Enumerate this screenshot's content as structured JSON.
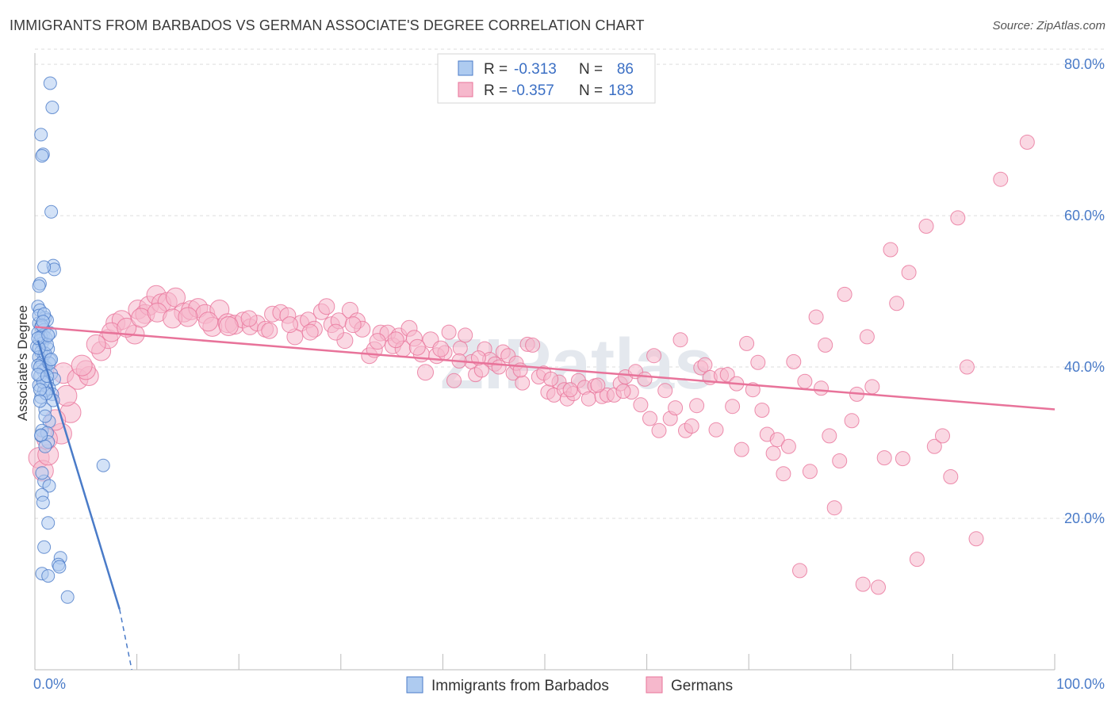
{
  "title": "IMMIGRANTS FROM BARBADOS VS GERMAN ASSOCIATE'S DEGREE CORRELATION CHART",
  "source": "Source: ZipAtlas.com",
  "watermark": "ZIPatlas",
  "colors": {
    "blue": "#4a7bc8",
    "blue_fill": "#aecbf0",
    "pink": "#e8739a",
    "pink_fill": "#f6b8cc",
    "grid": "#dddddd"
  },
  "legend": {
    "rows": [
      {
        "r_label": "R =",
        "r_value": "-0.313",
        "n_label": "N =",
        "n_value": "86"
      },
      {
        "r_label": "R =",
        "r_value": "-0.357",
        "n_label": "N =",
        "n_value": "183"
      }
    ]
  },
  "bottom_legend": [
    "Immigrants from Barbados",
    "Germans"
  ],
  "chart_data": {
    "type": "scatter",
    "title": "IMMIGRANTS FROM BARBADOS VS GERMAN ASSOCIATE'S DEGREE CORRELATION CHART",
    "xlabel": "",
    "ylabel": "Associate's Degree",
    "xlim": [
      0,
      100
    ],
    "ylim": [
      0,
      82
    ],
    "x_tick_labels": [
      "0.0%",
      "100.0%"
    ],
    "y_ticks": [
      20,
      40,
      60,
      80
    ],
    "y_tick_labels": [
      "20.0%",
      "40.0%",
      "60.0%",
      "80.0%"
    ],
    "grid": true,
    "legend_position": "top-center",
    "series": [
      {
        "name": "Immigrants from Barbados",
        "r": -0.313,
        "n": 86,
        "trend": {
          "x0": 0.3,
          "y0": 43.5,
          "x1": 8.3,
          "y1": 8.0,
          "dash_x1": 9.5,
          "dash_y1": 0
        },
        "points": [
          [
            1.5,
            77.5
          ],
          [
            1.7,
            74.3
          ],
          [
            0.6,
            70.7
          ],
          [
            0.8,
            68.1
          ],
          [
            0.7,
            67.9
          ],
          [
            1.6,
            60.5
          ],
          [
            1.8,
            53.4
          ],
          [
            1.9,
            52.9
          ],
          [
            0.9,
            53.2
          ],
          [
            0.5,
            51.0
          ],
          [
            0.4,
            50.7
          ],
          [
            0.3,
            48.0
          ],
          [
            0.5,
            47.5
          ],
          [
            1.0,
            46.5
          ],
          [
            1.2,
            46.2
          ],
          [
            0.4,
            45.8
          ],
          [
            0.6,
            45.3
          ],
          [
            0.9,
            44.9
          ],
          [
            0.3,
            44.5
          ],
          [
            0.8,
            44.2
          ],
          [
            1.1,
            43.8
          ],
          [
            0.5,
            43.5
          ],
          [
            0.7,
            43.1
          ],
          [
            0.2,
            42.7
          ],
          [
            1.3,
            42.4
          ],
          [
            0.6,
            42.0
          ],
          [
            0.9,
            41.6
          ],
          [
            0.4,
            41.3
          ],
          [
            1.5,
            40.9
          ],
          [
            0.7,
            40.6
          ],
          [
            0.3,
            40.2
          ],
          [
            1.1,
            39.9
          ],
          [
            0.8,
            39.5
          ],
          [
            1.6,
            39.1
          ],
          [
            0.5,
            38.8
          ],
          [
            1.9,
            38.4
          ],
          [
            1.2,
            38.0
          ],
          [
            0.4,
            37.6
          ],
          [
            1.4,
            37.2
          ],
          [
            0.9,
            36.9
          ],
          [
            1.7,
            36.4
          ],
          [
            0.6,
            36.0
          ],
          [
            1.8,
            35.6
          ],
          [
            1.0,
            34.4
          ],
          [
            1.4,
            32.8
          ],
          [
            0.7,
            31.6
          ],
          [
            1.2,
            31.3
          ],
          [
            0.6,
            30.9
          ],
          [
            1.3,
            30.1
          ],
          [
            0.9,
            24.9
          ],
          [
            1.4,
            24.3
          ],
          [
            0.7,
            23.1
          ],
          [
            0.8,
            22.1
          ],
          [
            1.3,
            19.4
          ],
          [
            0.9,
            16.2
          ],
          [
            2.5,
            14.8
          ],
          [
            2.3,
            13.9
          ],
          [
            2.4,
            13.6
          ],
          [
            0.7,
            12.7
          ],
          [
            1.3,
            12.4
          ],
          [
            3.2,
            9.6
          ],
          [
            6.7,
            27.0
          ],
          [
            0.4,
            46.8
          ],
          [
            0.6,
            44.0
          ],
          [
            1.0,
            41.8
          ],
          [
            0.5,
            40.0
          ],
          [
            1.2,
            43.0
          ],
          [
            0.8,
            38.0
          ],
          [
            0.3,
            39.0
          ],
          [
            1.5,
            44.5
          ],
          [
            0.9,
            47.0
          ],
          [
            0.4,
            42.5
          ],
          [
            1.1,
            36.5
          ],
          [
            0.7,
            45.5
          ],
          [
            1.4,
            40.5
          ],
          [
            0.5,
            37.0
          ],
          [
            1.0,
            33.5
          ],
          [
            0.6,
            31.0
          ],
          [
            1.6,
            41.0
          ],
          [
            0.3,
            43.8
          ],
          [
            0.8,
            46.0
          ],
          [
            1.2,
            38.8
          ],
          [
            0.5,
            35.5
          ],
          [
            1.0,
            29.5
          ],
          [
            0.7,
            26.0
          ],
          [
            1.3,
            44.2
          ]
        ]
      },
      {
        "name": "Germans",
        "r": -0.357,
        "n": 183,
        "trend": {
          "x0": 0,
          "y0": 45.3,
          "x1": 100,
          "y1": 34.4
        },
        "points": [
          [
            0.4,
            28.0
          ],
          [
            0.8,
            26.3
          ],
          [
            1.3,
            28.4
          ],
          [
            2.6,
            31.2
          ],
          [
            3.5,
            34.0
          ],
          [
            2.8,
            39.2
          ],
          [
            4.2,
            38.4
          ],
          [
            5.3,
            38.8
          ],
          [
            5.0,
            39.6
          ],
          [
            6.5,
            42.1
          ],
          [
            7.2,
            43.7
          ],
          [
            7.9,
            45.8
          ],
          [
            8.5,
            46.2
          ],
          [
            9.8,
            44.3
          ],
          [
            10.1,
            47.6
          ],
          [
            10.8,
            47.0
          ],
          [
            11.2,
            48.1
          ],
          [
            11.9,
            49.5
          ],
          [
            12.4,
            48.4
          ],
          [
            13.0,
            48.6
          ],
          [
            13.8,
            49.2
          ],
          [
            14.6,
            47.2
          ],
          [
            15.3,
            47.5
          ],
          [
            16.0,
            47.8
          ],
          [
            16.7,
            47.0
          ],
          [
            17.4,
            45.3
          ],
          [
            18.1,
            47.6
          ],
          [
            18.9,
            45.8
          ],
          [
            19.6,
            45.6
          ],
          [
            20.4,
            46.2
          ],
          [
            21.1,
            45.3
          ],
          [
            21.8,
            45.8
          ],
          [
            22.6,
            45.0
          ],
          [
            23.3,
            47.0
          ],
          [
            24.1,
            47.2
          ],
          [
            24.8,
            46.8
          ],
          [
            25.5,
            44.0
          ],
          [
            26.1,
            45.8
          ],
          [
            26.8,
            46.2
          ],
          [
            27.4,
            45.0
          ],
          [
            28.1,
            47.3
          ],
          [
            28.6,
            48.0
          ],
          [
            29.1,
            45.6
          ],
          [
            29.8,
            46.1
          ],
          [
            30.4,
            43.5
          ],
          [
            30.9,
            47.5
          ],
          [
            31.6,
            46.1
          ],
          [
            32.1,
            45.0
          ],
          [
            32.8,
            41.5
          ],
          [
            33.3,
            42.3
          ],
          [
            33.9,
            44.5
          ],
          [
            34.6,
            44.5
          ],
          [
            35.1,
            42.8
          ],
          [
            35.7,
            44.1
          ],
          [
            36.1,
            42.4
          ],
          [
            36.7,
            45.1
          ],
          [
            37.2,
            43.8
          ],
          [
            37.9,
            41.7
          ],
          [
            38.3,
            39.3
          ],
          [
            38.8,
            43.6
          ],
          [
            39.4,
            41.5
          ],
          [
            40.2,
            41.9
          ],
          [
            40.6,
            44.6
          ],
          [
            41.1,
            38.2
          ],
          [
            41.7,
            42.5
          ],
          [
            42.2,
            44.2
          ],
          [
            42.8,
            40.7
          ],
          [
            43.2,
            39.0
          ],
          [
            43.8,
            39.6
          ],
          [
            44.1,
            42.4
          ],
          [
            44.6,
            41.0
          ],
          [
            45.1,
            40.4
          ],
          [
            45.9,
            42.0
          ],
          [
            46.4,
            41.5
          ],
          [
            46.9,
            39.2
          ],
          [
            47.2,
            40.5
          ],
          [
            47.8,
            37.9
          ],
          [
            48.3,
            43.0
          ],
          [
            48.8,
            42.9
          ],
          [
            49.4,
            38.7
          ],
          [
            49.9,
            39.2
          ],
          [
            50.3,
            36.7
          ],
          [
            50.9,
            36.3
          ],
          [
            51.4,
            38.0
          ],
          [
            51.9,
            37.0
          ],
          [
            52.2,
            35.8
          ],
          [
            52.8,
            36.5
          ],
          [
            53.3,
            38.2
          ],
          [
            53.9,
            37.3
          ],
          [
            54.3,
            35.8
          ],
          [
            54.9,
            37.5
          ],
          [
            55.6,
            36.1
          ],
          [
            56.1,
            36.3
          ],
          [
            56.8,
            36.3
          ],
          [
            57.4,
            37.8
          ],
          [
            57.9,
            38.7
          ],
          [
            58.5,
            36.7
          ],
          [
            58.9,
            39.4
          ],
          [
            59.4,
            35.0
          ],
          [
            59.8,
            38.4
          ],
          [
            60.3,
            33.2
          ],
          [
            60.7,
            41.5
          ],
          [
            61.2,
            31.6
          ],
          [
            61.8,
            36.9
          ],
          [
            62.3,
            33.2
          ],
          [
            62.8,
            34.6
          ],
          [
            63.3,
            43.6
          ],
          [
            63.8,
            31.6
          ],
          [
            64.4,
            32.2
          ],
          [
            64.9,
            34.9
          ],
          [
            65.3,
            39.9
          ],
          [
            65.7,
            40.3
          ],
          [
            66.2,
            38.6
          ],
          [
            66.8,
            31.7
          ],
          [
            67.3,
            38.9
          ],
          [
            67.9,
            39.0
          ],
          [
            68.4,
            34.8
          ],
          [
            68.8,
            37.8
          ],
          [
            69.3,
            29.1
          ],
          [
            69.8,
            43.1
          ],
          [
            70.4,
            37.0
          ],
          [
            70.9,
            40.6
          ],
          [
            71.3,
            34.3
          ],
          [
            71.8,
            31.1
          ],
          [
            72.4,
            28.6
          ],
          [
            72.8,
            30.4
          ],
          [
            73.4,
            25.9
          ],
          [
            73.9,
            29.5
          ],
          [
            74.4,
            40.7
          ],
          [
            75.0,
            13.1
          ],
          [
            75.5,
            38.1
          ],
          [
            76.0,
            26.2
          ],
          [
            76.6,
            46.6
          ],
          [
            77.1,
            37.2
          ],
          [
            77.5,
            42.9
          ],
          [
            77.9,
            30.9
          ],
          [
            78.4,
            21.4
          ],
          [
            78.9,
            27.6
          ],
          [
            79.4,
            49.6
          ],
          [
            80.1,
            32.9
          ],
          [
            80.6,
            36.4
          ],
          [
            81.2,
            11.3
          ],
          [
            81.6,
            44.0
          ],
          [
            82.1,
            37.4
          ],
          [
            82.7,
            10.9
          ],
          [
            83.3,
            28.0
          ],
          [
            83.9,
            55.5
          ],
          [
            84.5,
            48.4
          ],
          [
            85.1,
            27.9
          ],
          [
            85.7,
            52.5
          ],
          [
            86.5,
            14.6
          ],
          [
            87.4,
            58.6
          ],
          [
            88.2,
            29.5
          ],
          [
            89.0,
            30.9
          ],
          [
            89.8,
            25.5
          ],
          [
            90.5,
            59.7
          ],
          [
            91.4,
            40.0
          ],
          [
            92.3,
            17.3
          ],
          [
            94.7,
            64.8
          ],
          [
            97.3,
            69.7
          ],
          [
            1.2,
            30.5
          ],
          [
            2.0,
            33.0
          ],
          [
            3.1,
            36.2
          ],
          [
            4.6,
            40.2
          ],
          [
            6.0,
            43.0
          ],
          [
            7.5,
            44.6
          ],
          [
            9.0,
            45.2
          ],
          [
            10.4,
            46.5
          ],
          [
            12.0,
            47.2
          ],
          [
            13.5,
            46.4
          ],
          [
            15.0,
            46.6
          ],
          [
            17.0,
            46.0
          ],
          [
            19.0,
            45.4
          ],
          [
            21.0,
            46.4
          ],
          [
            23.0,
            44.8
          ],
          [
            25.0,
            45.6
          ],
          [
            27.0,
            44.6
          ],
          [
            29.5,
            44.6
          ],
          [
            31.2,
            45.6
          ],
          [
            33.6,
            43.4
          ],
          [
            35.4,
            43.6
          ],
          [
            37.5,
            42.6
          ],
          [
            39.8,
            42.4
          ],
          [
            41.6,
            40.8
          ],
          [
            43.5,
            41.2
          ],
          [
            45.5,
            40.0
          ],
          [
            47.6,
            39.6
          ],
          [
            50.6,
            38.4
          ],
          [
            52.5,
            37.0
          ],
          [
            55.2,
            37.6
          ],
          [
            57.7,
            36.8
          ]
        ]
      }
    ]
  }
}
